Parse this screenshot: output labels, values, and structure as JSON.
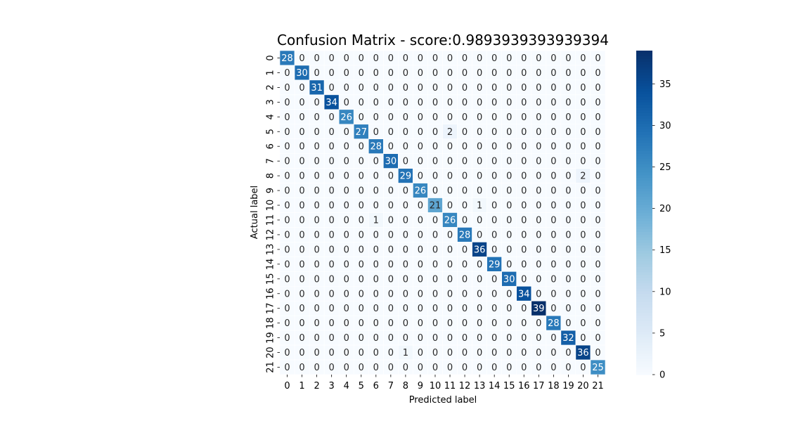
{
  "chart_data": {
    "type": "heatmap",
    "title": "Confusion Matrix - score:0.9893939393939394",
    "xlabel": "Predicted label",
    "ylabel": "Actual label",
    "x_tick_labels": [
      "0",
      "1",
      "2",
      "3",
      "4",
      "5",
      "6",
      "7",
      "8",
      "9",
      "10",
      "11",
      "12",
      "13",
      "14",
      "15",
      "16",
      "17",
      "18",
      "19",
      "20",
      "21"
    ],
    "y_tick_labels": [
      "0",
      "1",
      "2",
      "3",
      "4",
      "5",
      "6",
      "7",
      "8",
      "9",
      "10",
      "11",
      "12",
      "13",
      "14",
      "15",
      "16",
      "17",
      "18",
      "19",
      "20",
      "21"
    ],
    "matrix": [
      [
        28,
        0,
        0,
        0,
        0,
        0,
        0,
        0,
        0,
        0,
        0,
        0,
        0,
        0,
        0,
        0,
        0,
        0,
        0,
        0,
        0,
        0
      ],
      [
        0,
        30,
        0,
        0,
        0,
        0,
        0,
        0,
        0,
        0,
        0,
        0,
        0,
        0,
        0,
        0,
        0,
        0,
        0,
        0,
        0,
        0
      ],
      [
        0,
        0,
        31,
        0,
        0,
        0,
        0,
        0,
        0,
        0,
        0,
        0,
        0,
        0,
        0,
        0,
        0,
        0,
        0,
        0,
        0,
        0
      ],
      [
        0,
        0,
        0,
        34,
        0,
        0,
        0,
        0,
        0,
        0,
        0,
        0,
        0,
        0,
        0,
        0,
        0,
        0,
        0,
        0,
        0,
        0
      ],
      [
        0,
        0,
        0,
        0,
        26,
        0,
        0,
        0,
        0,
        0,
        0,
        0,
        0,
        0,
        0,
        0,
        0,
        0,
        0,
        0,
        0,
        0
      ],
      [
        0,
        0,
        0,
        0,
        0,
        27,
        0,
        0,
        0,
        0,
        0,
        2,
        0,
        0,
        0,
        0,
        0,
        0,
        0,
        0,
        0,
        0
      ],
      [
        0,
        0,
        0,
        0,
        0,
        0,
        28,
        0,
        0,
        0,
        0,
        0,
        0,
        0,
        0,
        0,
        0,
        0,
        0,
        0,
        0,
        0
      ],
      [
        0,
        0,
        0,
        0,
        0,
        0,
        0,
        30,
        0,
        0,
        0,
        0,
        0,
        0,
        0,
        0,
        0,
        0,
        0,
        0,
        0,
        0
      ],
      [
        0,
        0,
        0,
        0,
        0,
        0,
        0,
        0,
        29,
        0,
        0,
        0,
        0,
        0,
        0,
        0,
        0,
        0,
        0,
        0,
        2,
        0
      ],
      [
        0,
        0,
        0,
        0,
        0,
        0,
        0,
        0,
        0,
        26,
        0,
        0,
        0,
        0,
        0,
        0,
        0,
        0,
        0,
        0,
        0,
        0
      ],
      [
        0,
        0,
        0,
        0,
        0,
        0,
        0,
        0,
        0,
        0,
        21,
        0,
        0,
        1,
        0,
        0,
        0,
        0,
        0,
        0,
        0,
        0
      ],
      [
        0,
        0,
        0,
        0,
        0,
        0,
        1,
        0,
        0,
        0,
        0,
        26,
        0,
        0,
        0,
        0,
        0,
        0,
        0,
        0,
        0,
        0
      ],
      [
        0,
        0,
        0,
        0,
        0,
        0,
        0,
        0,
        0,
        0,
        0,
        0,
        28,
        0,
        0,
        0,
        0,
        0,
        0,
        0,
        0,
        0
      ],
      [
        0,
        0,
        0,
        0,
        0,
        0,
        0,
        0,
        0,
        0,
        0,
        0,
        0,
        36,
        0,
        0,
        0,
        0,
        0,
        0,
        0,
        0
      ],
      [
        0,
        0,
        0,
        0,
        0,
        0,
        0,
        0,
        0,
        0,
        0,
        0,
        0,
        0,
        29,
        0,
        0,
        0,
        0,
        0,
        0,
        0
      ],
      [
        0,
        0,
        0,
        0,
        0,
        0,
        0,
        0,
        0,
        0,
        0,
        0,
        0,
        0,
        0,
        30,
        0,
        0,
        0,
        0,
        0,
        0
      ],
      [
        0,
        0,
        0,
        0,
        0,
        0,
        0,
        0,
        0,
        0,
        0,
        0,
        0,
        0,
        0,
        0,
        34,
        0,
        0,
        0,
        0,
        0
      ],
      [
        0,
        0,
        0,
        0,
        0,
        0,
        0,
        0,
        0,
        0,
        0,
        0,
        0,
        0,
        0,
        0,
        0,
        39,
        0,
        0,
        0,
        0
      ],
      [
        0,
        0,
        0,
        0,
        0,
        0,
        0,
        0,
        0,
        0,
        0,
        0,
        0,
        0,
        0,
        0,
        0,
        0,
        28,
        0,
        0,
        0
      ],
      [
        0,
        0,
        0,
        0,
        0,
        0,
        0,
        0,
        0,
        0,
        0,
        0,
        0,
        0,
        0,
        0,
        0,
        0,
        0,
        32,
        0,
        0
      ],
      [
        0,
        0,
        0,
        0,
        0,
        0,
        0,
        0,
        1,
        0,
        0,
        0,
        0,
        0,
        0,
        0,
        0,
        0,
        0,
        0,
        36,
        0
      ],
      [
        0,
        0,
        0,
        0,
        0,
        0,
        0,
        0,
        0,
        0,
        0,
        0,
        0,
        0,
        0,
        0,
        0,
        0,
        0,
        0,
        0,
        25
      ]
    ],
    "colormap": "Blues",
    "color_min": 0,
    "color_max": 39,
    "colorbar_ticks": [
      0,
      5,
      10,
      15,
      20,
      25,
      30,
      35
    ],
    "grid": false,
    "cell_separator_color": "#ffffff"
  }
}
